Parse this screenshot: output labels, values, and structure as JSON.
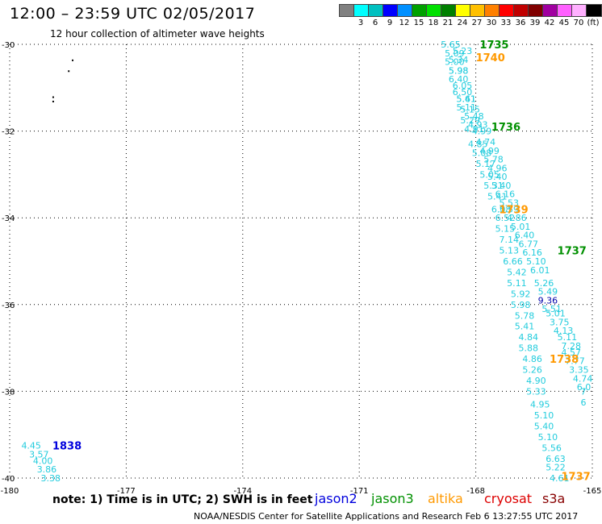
{
  "title": "12:00 – 23:59 UTC 02/05/2017",
  "subtitle": "12 hour collection of altimeter wave heights",
  "scale": {
    "labels": [
      "",
      "3",
      "6",
      "9",
      "12",
      "15",
      "18",
      "21",
      "24",
      "27",
      "30",
      "33",
      "36",
      "39",
      "42",
      "45",
      "70",
      "(ft)"
    ],
    "colors": [
      "#808080",
      "#00ffff",
      "#00c0c0",
      "#0000ff",
      "#0090ff",
      "#00a000",
      "#00e000",
      "#008000",
      "#ffff00",
      "#ffc000",
      "#ff8000",
      "#ff0000",
      "#c00000",
      "#800000",
      "#a000a0",
      "#ff60ff",
      "#ffb0ff",
      "#000000"
    ]
  },
  "note": "note: 1) Time is in UTC; 2) SWH is in feet",
  "missions": [
    {
      "name": "jason2",
      "color": "#0000dd"
    },
    {
      "name": "jason3",
      "color": "#009000"
    },
    {
      "name": "altika",
      "color": "#ff9900"
    },
    {
      "name": "cryosat",
      "color": "#dd0000"
    },
    {
      "name": "s3a",
      "color": "#880000"
    }
  ],
  "credit": "NOAA/NESDIS Center for Satellite Applications and Research   Feb  6 13:27:55 UTC 2017",
  "chart_data": {
    "type": "scatter",
    "xlim": [
      -180,
      -165
    ],
    "ylim": [
      -40,
      -30
    ],
    "xticks": [
      "-180",
      "-177",
      "-174",
      "-171",
      "-168",
      "-165"
    ],
    "yticks": [
      "-30",
      "-32",
      "-34",
      "-36",
      "-38",
      "-40"
    ],
    "grid": true,
    "wave_labels": [
      {
        "x": -168.9,
        "y": -30.0,
        "v": "5.65"
      },
      {
        "x": -168.6,
        "y": -30.15,
        "v": "5.23"
      },
      {
        "x": -168.8,
        "y": -30.2,
        "v": "5.09"
      },
      {
        "x": -168.7,
        "y": -30.35,
        "v": "5.34"
      },
      {
        "x": -168.8,
        "y": -30.4,
        "v": "5.00"
      },
      {
        "x": -168.7,
        "y": -30.6,
        "v": "5.98"
      },
      {
        "x": -168.7,
        "y": -30.6,
        "v": "5.98"
      },
      {
        "x": -168.7,
        "y": -30.8,
        "v": "6.40"
      },
      {
        "x": -168.6,
        "y": -30.95,
        "v": "6.05"
      },
      {
        "x": -168.6,
        "y": -31.1,
        "v": "6.50"
      },
      {
        "x": -168.5,
        "y": -31.25,
        "v": "5.61"
      },
      {
        "x": -168.5,
        "y": -31.25,
        "v": "5.41"
      },
      {
        "x": -168.4,
        "y": -31.5,
        "v": "5.15"
      },
      {
        "x": -168.5,
        "y": -31.45,
        "v": "5.11"
      },
      {
        "x": -168.3,
        "y": -31.65,
        "v": "5.48"
      },
      {
        "x": -168.4,
        "y": -31.75,
        "v": "5.29"
      },
      {
        "x": -168.2,
        "y": -31.85,
        "v": "4.93"
      },
      {
        "x": -168.3,
        "y": -31.95,
        "v": "4.91"
      },
      {
        "x": -168.1,
        "y": -32.0,
        "v": "4.99"
      },
      {
        "x": -168.0,
        "y": -32.25,
        "v": "4.74"
      },
      {
        "x": -168.2,
        "y": -32.3,
        "v": "4.85"
      },
      {
        "x": -167.9,
        "y": -32.45,
        "v": "4.99"
      },
      {
        "x": -168.1,
        "y": -32.5,
        "v": "5.08"
      },
      {
        "x": -167.8,
        "y": -32.65,
        "v": "5.78"
      },
      {
        "x": -168.0,
        "y": -32.75,
        "v": "5.17"
      },
      {
        "x": -167.7,
        "y": -32.85,
        "v": "4.96"
      },
      {
        "x": -167.9,
        "y": -33.0,
        "v": "5.05"
      },
      {
        "x": -167.7,
        "y": -33.05,
        "v": "5.40"
      },
      {
        "x": -167.8,
        "y": -33.25,
        "v": "5.31"
      },
      {
        "x": -167.6,
        "y": -33.25,
        "v": "5.40"
      },
      {
        "x": -167.5,
        "y": -33.45,
        "v": "6.16"
      },
      {
        "x": -167.7,
        "y": -33.5,
        "v": "5.41"
      },
      {
        "x": -167.4,
        "y": -33.65,
        "v": "5.53"
      },
      {
        "x": -167.6,
        "y": -33.8,
        "v": "6.08"
      },
      {
        "x": -167.4,
        "y": -33.8,
        "v": "5.59"
      },
      {
        "x": -167.2,
        "y": -34.0,
        "v": "4.86"
      },
      {
        "x": -167.5,
        "y": -34.0,
        "v": "6.52"
      },
      {
        "x": -167.1,
        "y": -34.2,
        "v": "5.01"
      },
      {
        "x": -167.5,
        "y": -34.25,
        "v": "5.15"
      },
      {
        "x": -167.0,
        "y": -34.4,
        "v": "6.40"
      },
      {
        "x": -167.4,
        "y": -34.5,
        "v": "7.14"
      },
      {
        "x": -166.9,
        "y": -34.6,
        "v": "6.77"
      },
      {
        "x": -167.4,
        "y": -34.75,
        "v": "5.13"
      },
      {
        "x": -166.8,
        "y": -34.8,
        "v": "6.16"
      },
      {
        "x": -166.7,
        "y": -35.0,
        "v": "5.10"
      },
      {
        "x": -167.3,
        "y": -35.0,
        "v": "6.66"
      },
      {
        "x": -166.6,
        "y": -35.2,
        "v": "6.01"
      },
      {
        "x": -167.2,
        "y": -35.25,
        "v": "5.42"
      },
      {
        "x": -166.5,
        "y": -35.5,
        "v": "5.26"
      },
      {
        "x": -167.2,
        "y": -35.5,
        "v": "5.11"
      },
      {
        "x": -166.4,
        "y": -35.7,
        "v": "5.49"
      },
      {
        "x": -167.1,
        "y": -35.75,
        "v": "5.92"
      },
      {
        "x": -166.4,
        "y": -35.9,
        "v": "9.36",
        "c": "#0000aa"
      },
      {
        "x": -167.1,
        "y": -36.0,
        "v": "5.98"
      },
      {
        "x": -166.3,
        "y": -36.1,
        "v": "5.51"
      },
      {
        "x": -166.2,
        "y": -36.2,
        "v": "5.01"
      },
      {
        "x": -167.0,
        "y": -36.25,
        "v": "5.78"
      },
      {
        "x": -166.1,
        "y": -36.4,
        "v": "3.75"
      },
      {
        "x": -167.0,
        "y": -36.5,
        "v": "5.41"
      },
      {
        "x": -166.0,
        "y": -36.6,
        "v": "4.13"
      },
      {
        "x": -166.9,
        "y": -36.75,
        "v": "4.84"
      },
      {
        "x": -165.9,
        "y": -36.75,
        "v": "5.11"
      },
      {
        "x": -165.8,
        "y": -36.95,
        "v": "7.28"
      },
      {
        "x": -166.9,
        "y": -37.0,
        "v": "5.88"
      },
      {
        "x": -165.8,
        "y": -37.1,
        "v": "4.57"
      },
      {
        "x": -166.8,
        "y": -37.25,
        "v": "4.86"
      },
      {
        "x": -165.7,
        "y": -37.3,
        "v": "7.77"
      },
      {
        "x": -166.8,
        "y": -37.5,
        "v": "5.26"
      },
      {
        "x": -165.6,
        "y": -37.5,
        "v": "3.35"
      },
      {
        "x": -166.7,
        "y": -37.75,
        "v": "4.90"
      },
      {
        "x": -165.5,
        "y": -37.7,
        "v": "4.74"
      },
      {
        "x": -165.4,
        "y": -37.9,
        "v": "6.0"
      },
      {
        "x": -166.7,
        "y": -38.0,
        "v": "5.33"
      },
      {
        "x": -165.3,
        "y": -38.0,
        "v": "7"
      },
      {
        "x": -165.3,
        "y": -38.25,
        "v": "6"
      },
      {
        "x": -166.6,
        "y": -38.3,
        "v": "4.95"
      },
      {
        "x": -166.5,
        "y": -38.55,
        "v": "5.10"
      },
      {
        "x": -166.5,
        "y": -38.8,
        "v": "5.40"
      },
      {
        "x": -166.4,
        "y": -39.05,
        "v": "5.10"
      },
      {
        "x": -166.3,
        "y": -39.3,
        "v": "5.56"
      },
      {
        "x": -166.2,
        "y": -39.55,
        "v": "6.63"
      },
      {
        "x": -166.2,
        "y": -39.75,
        "v": "5.22"
      },
      {
        "x": -166.1,
        "y": -40.0,
        "v": "4.61"
      },
      {
        "x": -179.7,
        "y": -39.25,
        "v": "4.45"
      },
      {
        "x": -179.5,
        "y": -39.45,
        "v": "3.57"
      },
      {
        "x": -179.4,
        "y": -39.6,
        "v": "4.00"
      },
      {
        "x": -179.3,
        "y": -39.8,
        "v": "3.86"
      },
      {
        "x": -179.2,
        "y": -40.0,
        "v": "3.38"
      }
    ],
    "time_labels": [
      {
        "x": -167.9,
        "y": -30.0,
        "t": "1735",
        "mission": "jason3"
      },
      {
        "x": -168.0,
        "y": -30.3,
        "t": "1740",
        "mission": "altika"
      },
      {
        "x": -167.6,
        "y": -31.9,
        "t": "1736",
        "mission": "jason3"
      },
      {
        "x": -167.4,
        "y": -33.8,
        "t": "1739",
        "mission": "altika"
      },
      {
        "x": -165.9,
        "y": -34.75,
        "t": "1737",
        "mission": "jason3"
      },
      {
        "x": -166.1,
        "y": -37.25,
        "t": "1738",
        "mission": "altika"
      },
      {
        "x": -178.9,
        "y": -39.25,
        "t": "1838",
        "mission": "jason2"
      },
      {
        "x": -165.8,
        "y": -39.95,
        "t": "1737",
        "mission": "altika"
      }
    ],
    "points": [
      {
        "x": -178.4,
        "y": -30.35
      },
      {
        "x": -178.5,
        "y": -30.6
      },
      {
        "x": -178.9,
        "y": -31.2
      },
      {
        "x": -178.9,
        "y": -31.3
      }
    ]
  }
}
